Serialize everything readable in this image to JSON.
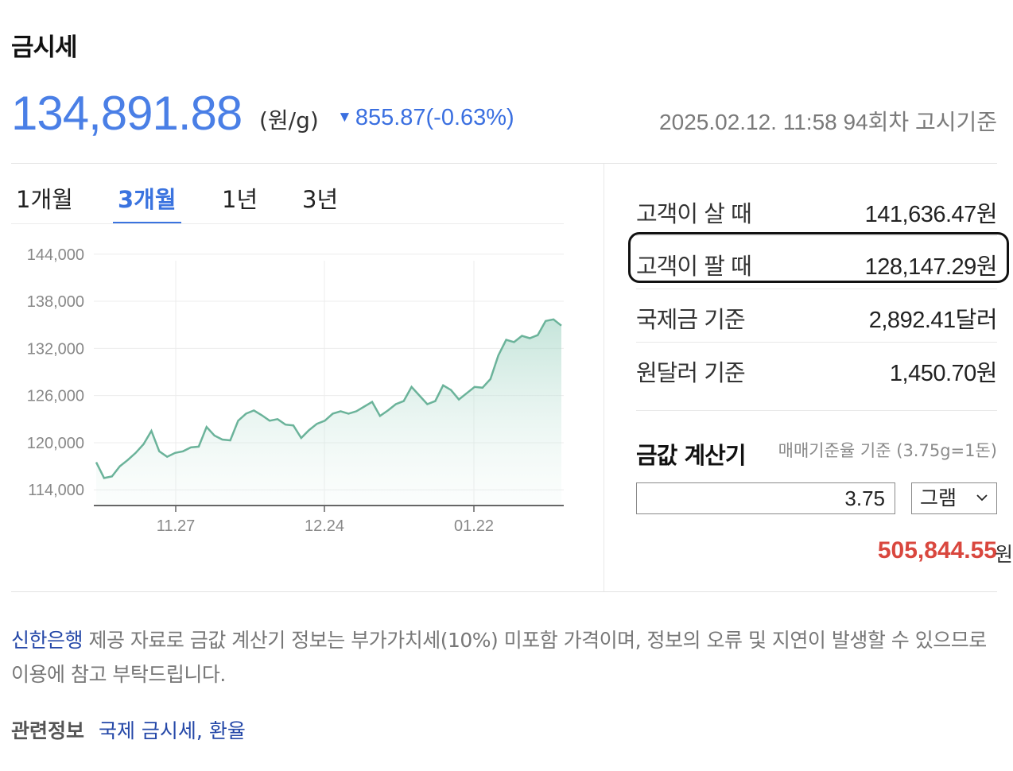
{
  "title": "금시세",
  "price": {
    "value": "134,891.88",
    "unit": "(원/g)",
    "change_arrow": "▼",
    "change": "855.87(-0.63%)",
    "notice": "2025.02.12. 11:58 94회차 고시기준",
    "change_color": "#3a6fe0",
    "main_color": "#4a7fe6"
  },
  "tabs": [
    {
      "label": "1개월",
      "active": false
    },
    {
      "label": "3개월",
      "active": true
    },
    {
      "label": "1년",
      "active": false
    },
    {
      "label": "3년",
      "active": false
    }
  ],
  "chart_data": {
    "type": "area",
    "title": "",
    "xlabel": "",
    "ylabel": "",
    "ylim": [
      112000,
      146000
    ],
    "yticks": [
      "144,000",
      "138,000",
      "132,000",
      "126,000",
      "120,000",
      "114,000"
    ],
    "xticks": [
      "11.27",
      "12.24",
      "01.22"
    ],
    "grid": true,
    "line_color": "#6bb39a",
    "series": [
      {
        "values": [
          117500,
          115500,
          115700,
          117000,
          117800,
          118700,
          119800,
          121500,
          118900,
          118200,
          118700,
          118900,
          119400,
          119500,
          122000,
          120900,
          120400,
          120300,
          122800,
          123700,
          124100,
          123500,
          122800,
          123000,
          122300,
          122200,
          120600,
          121600,
          122400,
          122800,
          123700,
          124000,
          123700,
          124000,
          124600,
          125200,
          123400,
          124100,
          124900,
          125300,
          127100,
          126000,
          124900,
          125300,
          127300,
          126700,
          125500,
          126300,
          127100,
          127000,
          128100,
          131100,
          133100,
          132800,
          133600,
          133300,
          133700,
          135500,
          135700,
          134900
        ]
      }
    ]
  },
  "info": [
    {
      "label": "고객이 살 때",
      "value": "141,636.47원"
    },
    {
      "label": "고객이 팔 때",
      "value": "128,147.29원"
    },
    {
      "label": "국제금 기준",
      "value": "2,892.41달러"
    },
    {
      "label": "원달러 기준",
      "value": "1,450.70원"
    }
  ],
  "calculator": {
    "title": "금값 계산기",
    "basis": "매매기준율 기준 (3.75g=1돈)",
    "input_value": "3.75",
    "unit_select": "그램",
    "result": "505,844.55",
    "result_unit": "원",
    "result_color": "#d9473e"
  },
  "footnote": {
    "bank": "신한은행",
    "text": " 제공 자료로 금값 계산기 정보는 부가가치세(10%) 미포함 가격이며, 정보의 오류 및 지연이 발생할 수 있으므로 이용에 참고 부탁드립니다."
  },
  "related": {
    "label": "관련정보",
    "links": [
      "국제 금시세",
      "환율"
    ],
    "separator": ","
  }
}
